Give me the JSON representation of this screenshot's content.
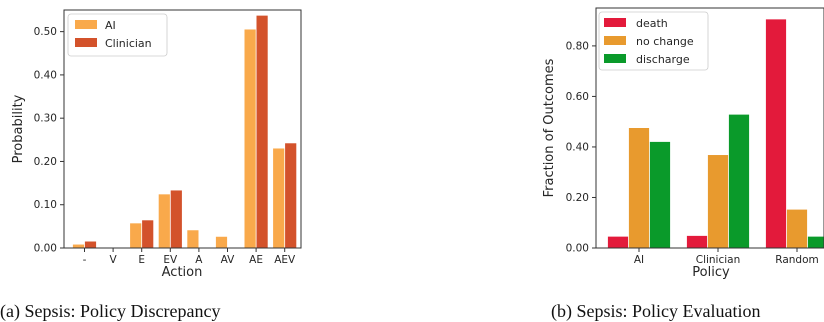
{
  "chart_data": [
    {
      "type": "bar",
      "caption": "(a) Sepsis: Policy Discrepancy",
      "xlabel": "Action",
      "ylabel": "Probability",
      "categories": [
        "-",
        "V",
        "E",
        "EV",
        "A",
        "AV",
        "AE",
        "AEV"
      ],
      "ylim": [
        0,
        0.55
      ],
      "yticks": [
        0.0,
        0.1,
        0.2,
        0.3,
        0.4,
        0.5
      ],
      "ytick_labels": [
        "0.00",
        "0.10",
        "0.20",
        "0.30",
        "0.40",
        "0.50"
      ],
      "legend_position": "upper-left",
      "series": [
        {
          "name": "AI",
          "color": "#F9A94B",
          "values": [
            0.008,
            0.0,
            0.057,
            0.124,
            0.041,
            0.026,
            0.505,
            0.23
          ]
        },
        {
          "name": "Clinician",
          "color": "#D3522B",
          "values": [
            0.015,
            0.0,
            0.064,
            0.133,
            0.0,
            0.0,
            0.537,
            0.242
          ]
        }
      ]
    },
    {
      "type": "bar",
      "caption": "(b) Sepsis: Policy Evaluation",
      "xlabel": "Policy",
      "ylabel": "Fraction of Outcomes",
      "categories": [
        "AI",
        "Clinician",
        "Random"
      ],
      "ylim": [
        0,
        0.95
      ],
      "yticks": [
        0.0,
        0.2,
        0.4,
        0.6,
        0.8
      ],
      "ytick_labels": [
        "0.00",
        "0.20",
        "0.40",
        "0.60",
        "0.80"
      ],
      "legend_position": "upper-left",
      "series": [
        {
          "name": "death",
          "color": "#E31A3B",
          "values": [
            0.045,
            0.048,
            0.905
          ]
        },
        {
          "name": "no change",
          "color": "#E89A2E",
          "values": [
            0.475,
            0.368,
            0.152
          ]
        },
        {
          "name": "discharge",
          "color": "#0A9A2A",
          "values": [
            0.42,
            0.528,
            0.045
          ]
        }
      ]
    }
  ]
}
